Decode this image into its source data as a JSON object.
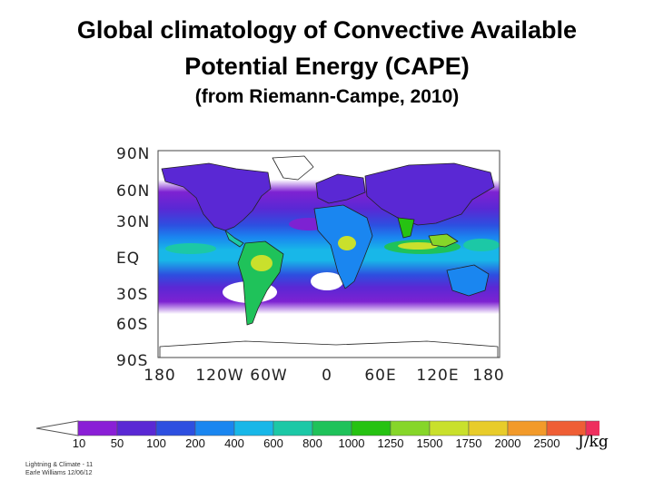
{
  "title": {
    "line1": "Global climatology of Convective Available",
    "line2": "Potential Energy (CAPE)",
    "citation": "(from Riemann-Campe, 2010)"
  },
  "map": {
    "lat_labels": [
      "90N",
      "60N",
      "30N",
      "EQ",
      "30S",
      "60S",
      "90S"
    ],
    "lon_labels": [
      "180",
      "120W",
      "60W",
      "0",
      "60E",
      "120E",
      "180"
    ],
    "colors": {
      "zero_cape": "#ffffff",
      "coastline": "#222222",
      "frame": "#444444"
    }
  },
  "colorbar": {
    "ticks": [
      "10",
      "50",
      "100",
      "200",
      "400",
      "600",
      "800",
      "1000",
      "1250",
      "1500",
      "1750",
      "2000",
      "2500"
    ],
    "unit": "J/kg",
    "colors": [
      "#8a1fd6",
      "#5a28d4",
      "#2d4fe0",
      "#1a86f0",
      "#18b7e8",
      "#1cc8a6",
      "#1fc25a",
      "#26c212",
      "#86d629",
      "#c9e02c",
      "#e8cc2a",
      "#f29a2a",
      "#ef5e35",
      "#ee2f5e",
      "#e53fc4"
    ]
  },
  "footer": {
    "line1": "Lightning & Climate - 11",
    "line2": "Earle Williams 12/06/12"
  }
}
